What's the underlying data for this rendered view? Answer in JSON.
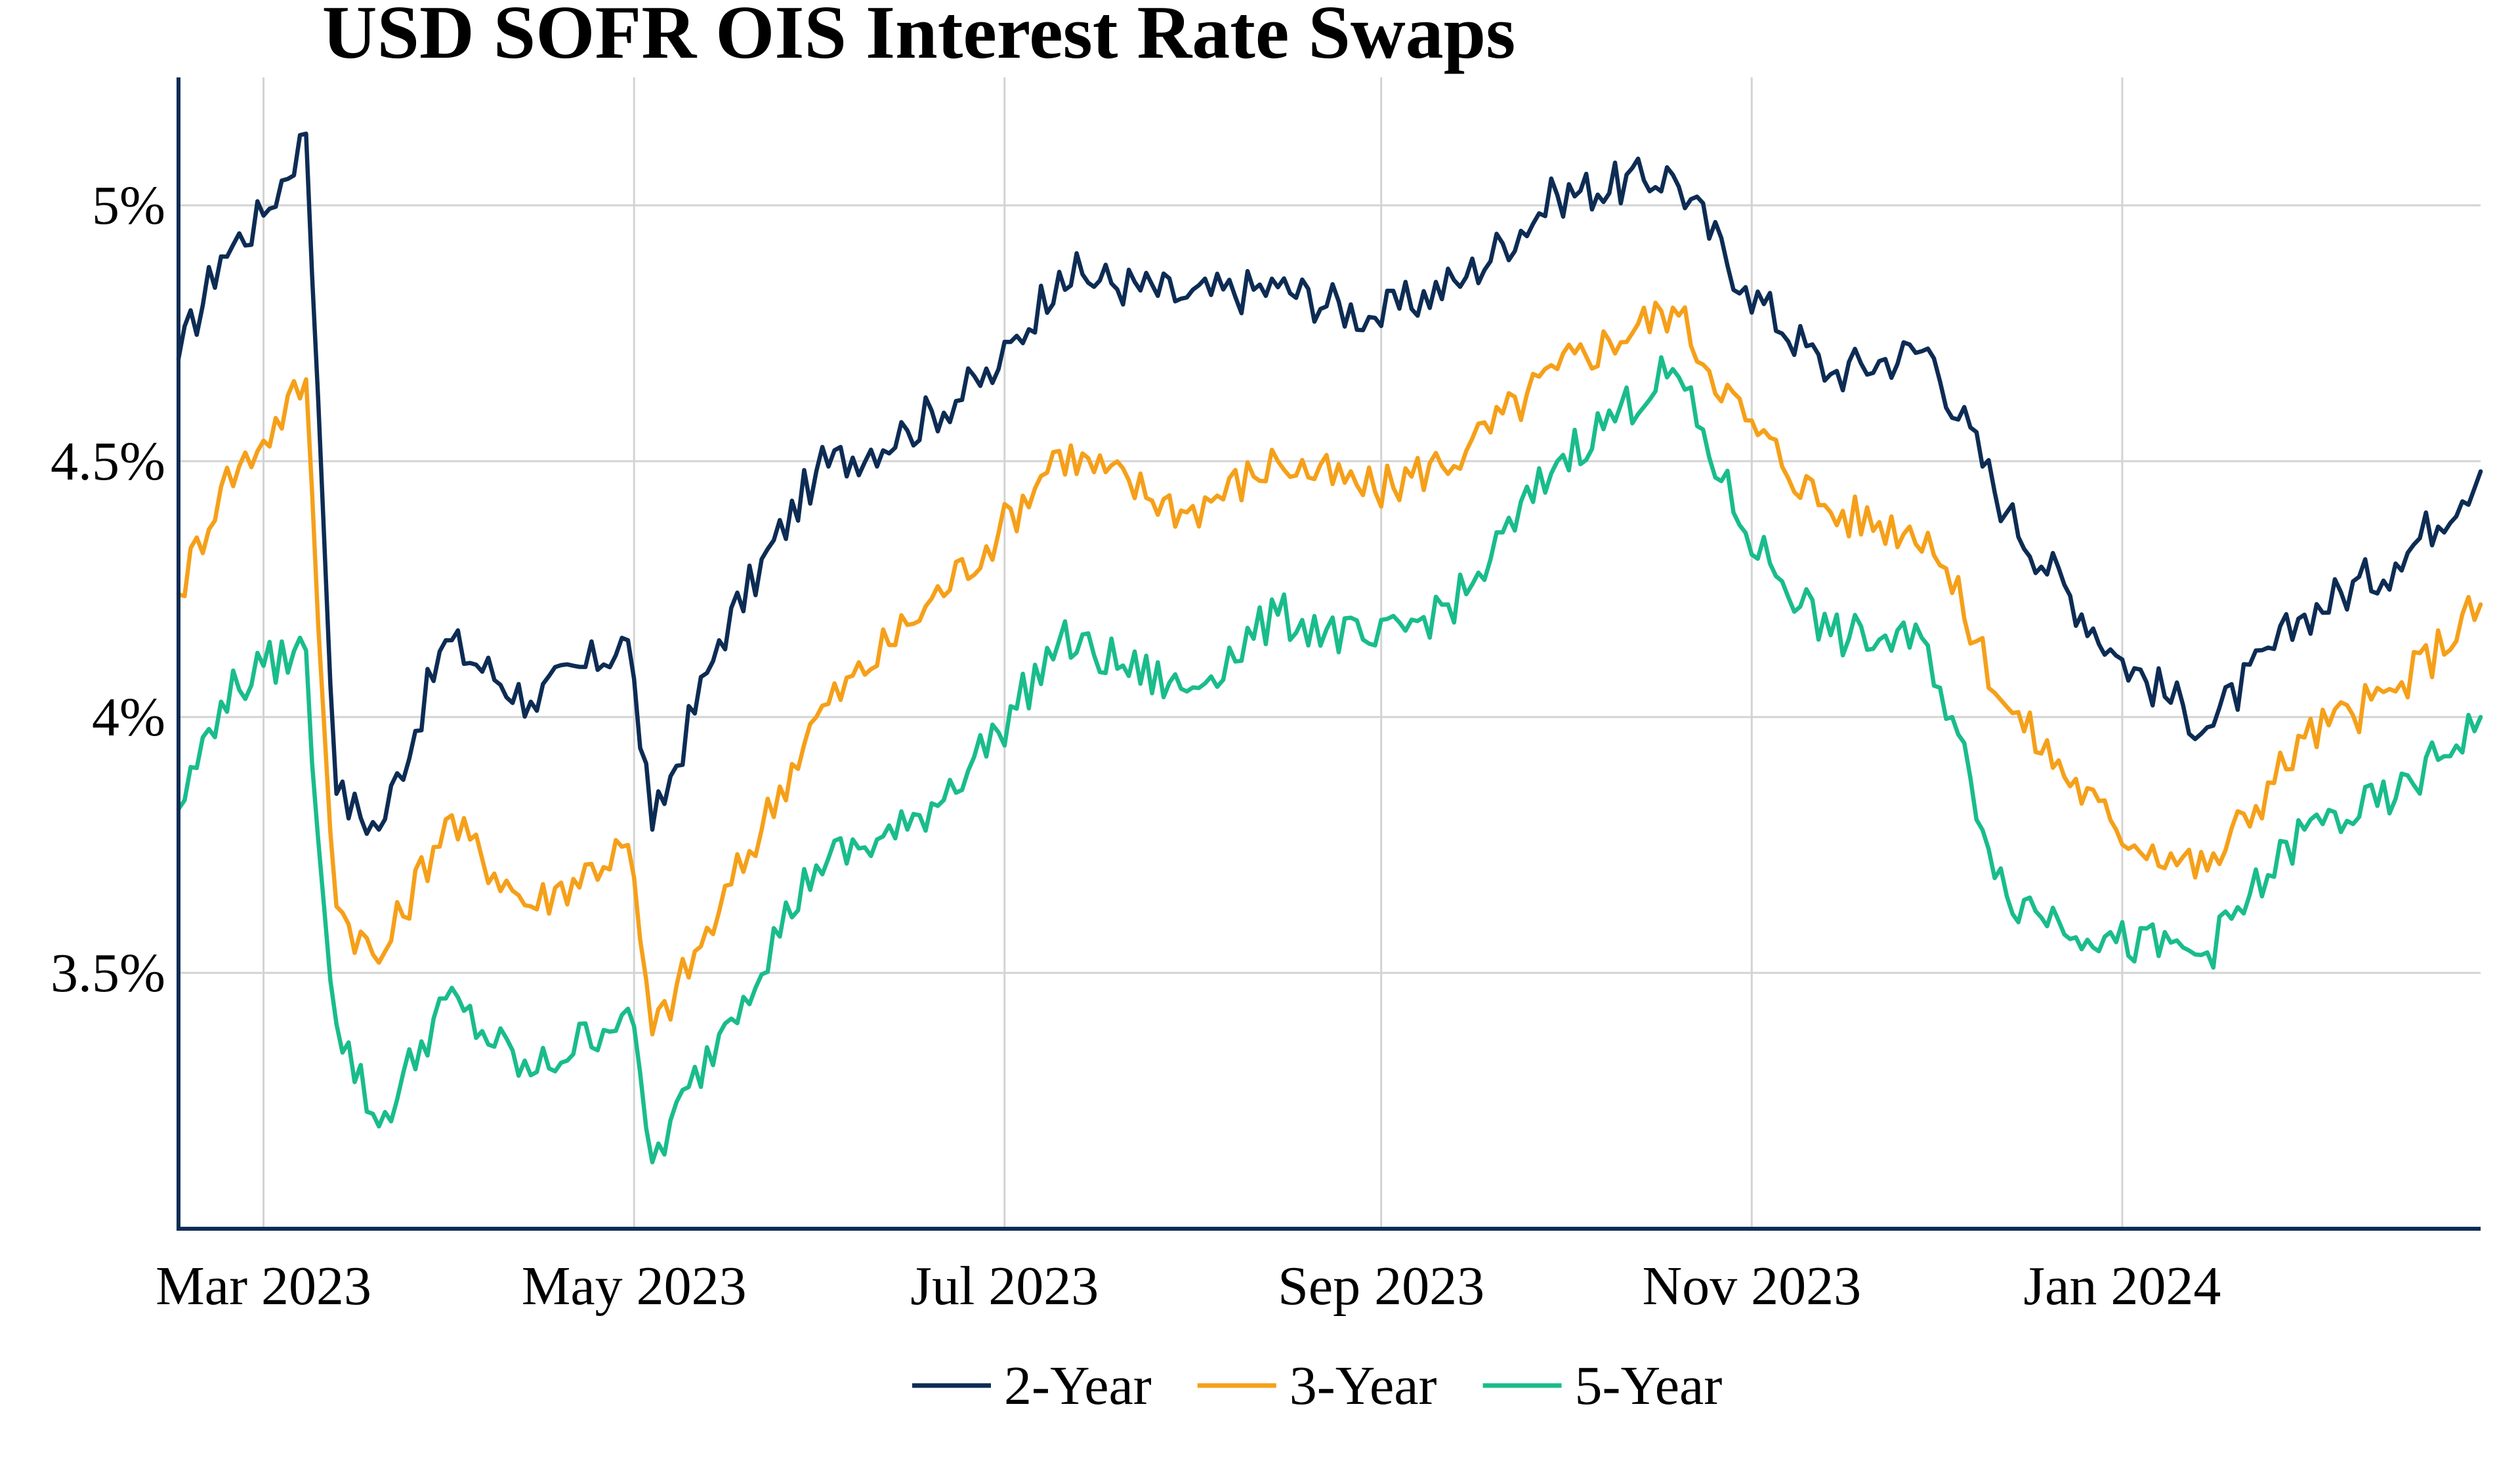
{
  "chart_data": {
    "type": "line",
    "title": "USD SOFR OIS Interest Rate Swaps",
    "xlabel": "",
    "ylabel": "",
    "x_range": [
      "2023-02-15",
      "2024-02-29"
    ],
    "ylim": [
      3.0,
      5.25
    ],
    "y_ticks": [
      3.5,
      4.0,
      4.5,
      5.0
    ],
    "y_tick_labels": [
      "3.5%",
      "4%",
      "4.5%",
      "5%"
    ],
    "x_ticks": [
      "2023-03-01",
      "2023-05-01",
      "2023-07-01",
      "2023-09-01",
      "2023-11-01",
      "2024-01-01"
    ],
    "x_tick_labels": [
      "Mar 2023",
      "May 2023",
      "Jul 2023",
      "Sep 2023",
      "Nov 2023",
      "Jan 2024"
    ],
    "grid": true,
    "legend_position": "bottom",
    "x": [
      "2023-02-15",
      "2023-02-22",
      "2023-03-01",
      "2023-03-08",
      "2023-03-10",
      "2023-03-13",
      "2023-03-20",
      "2023-03-31",
      "2023-04-14",
      "2023-04-30",
      "2023-05-04",
      "2023-05-15",
      "2023-05-31",
      "2023-06-15",
      "2023-06-30",
      "2023-07-10",
      "2023-07-31",
      "2023-08-15",
      "2023-08-31",
      "2023-09-15",
      "2023-09-30",
      "2023-10-19",
      "2023-10-31",
      "2023-11-14",
      "2023-11-30",
      "2023-12-13",
      "2023-12-31",
      "2024-01-15",
      "2024-01-31",
      "2024-02-15",
      "2024-02-29"
    ],
    "series": [
      {
        "name": "2-Year",
        "color": "#0d2c54",
        "values": [
          4.7,
          4.9,
          4.98,
          5.14,
          4.62,
          3.85,
          3.78,
          4.15,
          4.03,
          4.15,
          3.78,
          4.15,
          4.48,
          4.56,
          4.68,
          4.87,
          4.82,
          4.84,
          4.78,
          4.86,
          5.02,
          5.06,
          4.84,
          4.67,
          4.72,
          4.4,
          4.12,
          3.98,
          4.2,
          4.3,
          4.48
        ]
      },
      {
        "name": "3-Year",
        "color": "#f5a01a",
        "values": [
          4.24,
          4.45,
          4.54,
          4.66,
          4.18,
          3.63,
          3.52,
          3.8,
          3.63,
          3.75,
          3.38,
          3.62,
          4.0,
          4.18,
          4.36,
          4.52,
          4.4,
          4.5,
          4.44,
          4.52,
          4.68,
          4.8,
          4.58,
          4.4,
          4.36,
          4.02,
          3.78,
          3.7,
          3.96,
          4.05,
          4.22
        ]
      },
      {
        "name": "5-Year",
        "color": "#1abc8c",
        "values": [
          3.82,
          4.03,
          4.1,
          4.13,
          3.76,
          3.4,
          3.2,
          3.45,
          3.3,
          3.43,
          3.13,
          3.38,
          3.71,
          3.78,
          3.97,
          4.15,
          4.05,
          4.2,
          4.14,
          4.24,
          4.5,
          4.68,
          4.36,
          4.16,
          4.14,
          3.65,
          3.56,
          3.54,
          3.78,
          3.84,
          4.0
        ]
      }
    ]
  }
}
